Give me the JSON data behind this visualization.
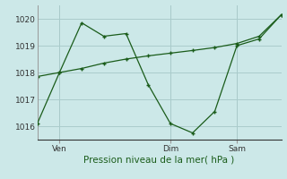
{
  "background_color": "#cce8e8",
  "grid_color": "#aacccc",
  "line_color": "#1a5c1a",
  "xlabel": "Pression niveau de la mer( hPa )",
  "ylim": [
    1015.5,
    1020.5
  ],
  "yticks": [
    1016,
    1017,
    1018,
    1019,
    1020
  ],
  "line1_x": [
    0,
    1,
    2,
    3,
    4,
    5,
    6,
    7,
    8,
    9,
    10,
    11
  ],
  "line1_y": [
    1016.1,
    1018.0,
    1019.85,
    1019.35,
    1019.45,
    1017.55,
    1016.1,
    1015.75,
    1016.55,
    1019.0,
    1019.25,
    1020.15
  ],
  "line2_x": [
    0,
    1,
    2,
    3,
    4,
    5,
    6,
    7,
    8,
    9,
    10,
    11
  ],
  "line2_y": [
    1017.85,
    1018.0,
    1018.15,
    1018.35,
    1018.5,
    1018.62,
    1018.72,
    1018.82,
    1018.93,
    1019.08,
    1019.35,
    1020.15
  ],
  "xtick_positions": [
    1,
    6,
    9
  ],
  "xtick_labels": [
    "Ven",
    "Dim",
    "Sam"
  ],
  "vline_x": [
    1,
    6,
    9
  ],
  "vline_color": "#999999",
  "xlabel_fontsize": 7.5,
  "ytick_fontsize": 6.5,
  "xtick_fontsize": 6.5
}
